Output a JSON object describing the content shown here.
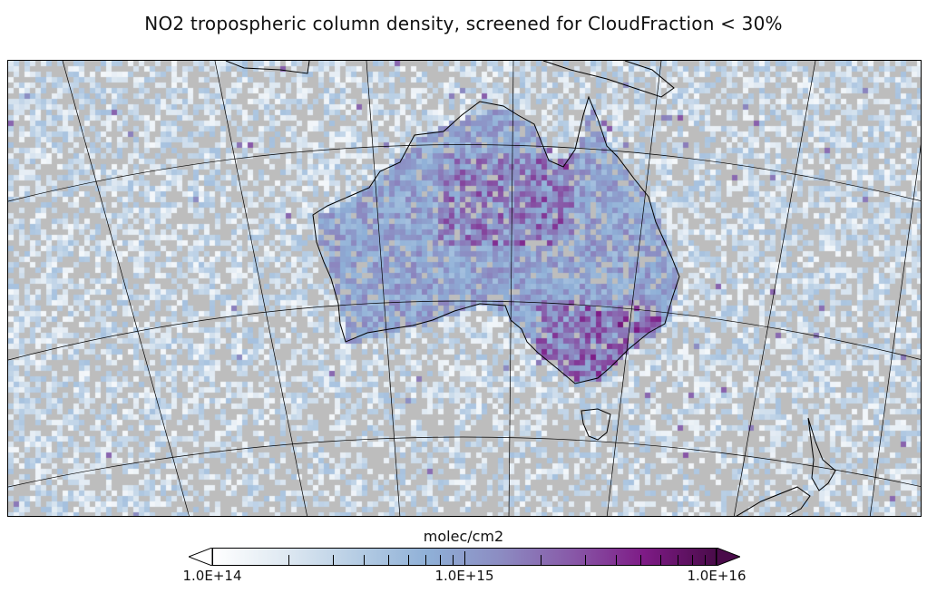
{
  "title": "NO2 tropospheric column density, screened for CloudFraction < 30%",
  "map": {
    "projection": "polar stereographic view centred on Australia",
    "region": "Australia, Southern Ocean, New Zealand",
    "background_color": "#bdbdbd",
    "coastline_color": "#000000",
    "graticule_color": "#000000",
    "missing_data": "grey (cloud-screened)"
  },
  "colorbar": {
    "label": "molec/cm2",
    "scale": "log",
    "min": 100000000000000.0,
    "max": 1e+16,
    "tick_labels": [
      "1.0E+14",
      "1.0E+15",
      "1.0E+16"
    ],
    "extend": "both",
    "colors": [
      "#ffffff",
      "#dfe9f2",
      "#b6cde4",
      "#8fb0d7",
      "#8c8cc2",
      "#8859a8",
      "#7e1b86",
      "#4a0b4a"
    ]
  },
  "chart_data": {
    "type": "heatmap",
    "title": "NO2 tropospheric column density, screened for CloudFraction < 30%",
    "colorbar_label": "molec/cm2",
    "zlim": [
      100000000000000.0,
      1e+16
    ],
    "z_scale": "log"
  }
}
